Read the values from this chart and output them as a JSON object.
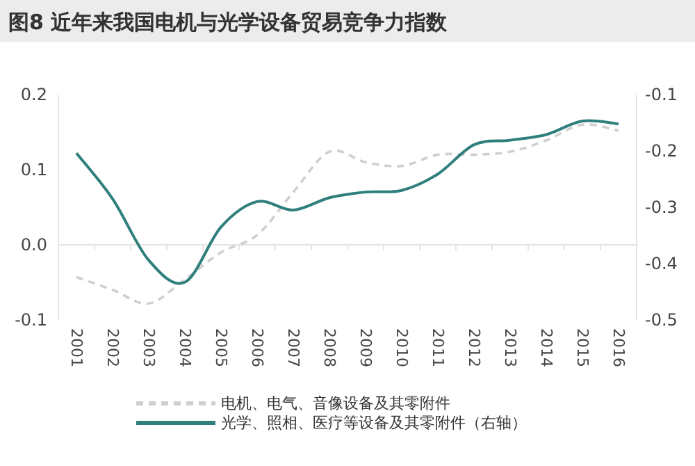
{
  "chart_data": {
    "type": "line",
    "title": "图8 近年来我国电机与光学设备贸易竞争力指数",
    "categories": [
      "2001",
      "2002",
      "2003",
      "2004",
      "2005",
      "2006",
      "2007",
      "2008",
      "2009",
      "2010",
      "2011",
      "2012",
      "2013",
      "2014",
      "2015",
      "2016"
    ],
    "series": [
      {
        "name": "电机、电气、音像设备及其零附件",
        "color": "#cfcfcf",
        "line_style": "dashed",
        "values": [
          -0.043,
          -0.06,
          -0.078,
          -0.046,
          -0.01,
          0.013,
          0.07,
          0.124,
          0.11,
          0.105,
          0.12,
          0.12,
          0.124,
          0.139,
          0.16,
          0.152
        ]
      },
      {
        "name": "光学、照相、医疗等设备及其零附件（右轴）",
        "color": "#2f7f7c",
        "axis": "y2",
        "values": [
          -0.204,
          -0.285,
          -0.394,
          -0.433,
          -0.335,
          -0.29,
          -0.305,
          -0.283,
          -0.273,
          -0.27,
          -0.241,
          -0.189,
          -0.181,
          -0.171,
          -0.147,
          -0.152
        ]
      }
    ],
    "ylim": [
      -0.1,
      0.2
    ],
    "yticks": [
      0.2,
      0.1,
      {
        "value": 0,
        "label": "0.0"
      },
      -0.1
    ],
    "y2lim": [
      -0.5,
      -0.1
    ],
    "y2ticks": [
      -0.1,
      -0.2,
      -0.3,
      -0.4,
      -0.5
    ],
    "legend": "bottom"
  }
}
